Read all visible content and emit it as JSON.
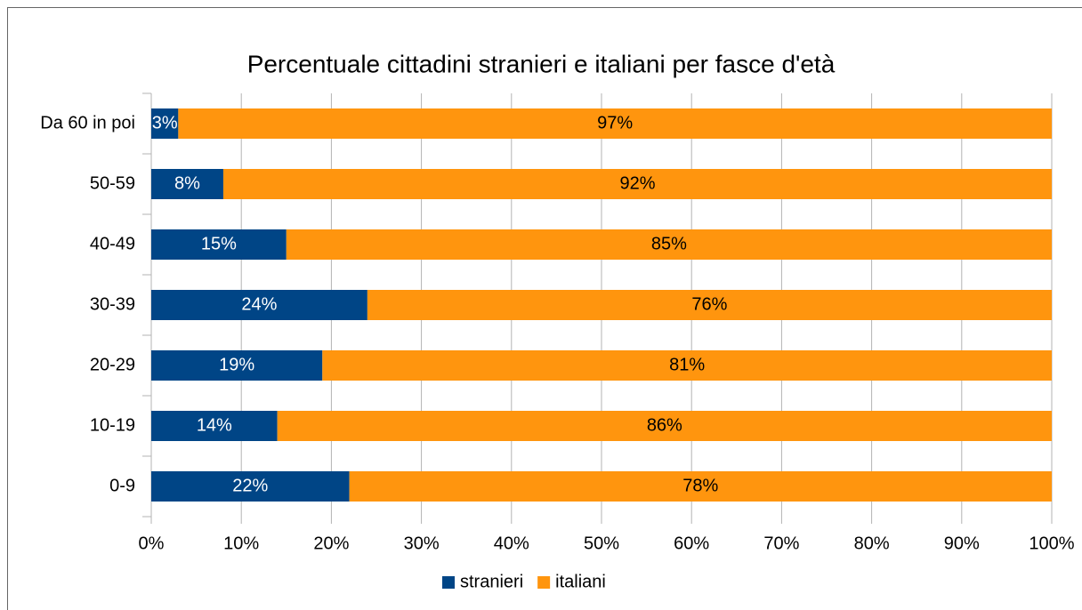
{
  "chart_data": {
    "type": "bar",
    "orientation": "horizontal",
    "stacked": true,
    "title": "Percentuale cittadini stranieri e italiani per fasce d'età",
    "categories": [
      "0-9",
      "10-19",
      "20-29",
      "30-39",
      "40-49",
      "50-59",
      "Da 60 in poi"
    ],
    "series": [
      {
        "name": "stranieri",
        "color": "#004586",
        "values": [
          22,
          14,
          19,
          24,
          15,
          8,
          3
        ],
        "value_labels": [
          "22%",
          "14%",
          "19%",
          "24%",
          "15%",
          "8%",
          "3%"
        ]
      },
      {
        "name": "italiani",
        "color": "#ff950e",
        "values": [
          78,
          86,
          81,
          76,
          85,
          92,
          97
        ],
        "value_labels": [
          "78%",
          "86%",
          "81%",
          "76%",
          "85%",
          "92%",
          "97%"
        ]
      }
    ],
    "xlim": [
      0,
      100
    ],
    "xticks": [
      {
        "value": 0,
        "label": "0%"
      },
      {
        "value": 10,
        "label": "10%"
      },
      {
        "value": 20,
        "label": "20%"
      },
      {
        "value": 30,
        "label": "30%"
      },
      {
        "value": 40,
        "label": "40%"
      },
      {
        "value": 50,
        "label": "50%"
      },
      {
        "value": 60,
        "label": "60%"
      },
      {
        "value": 70,
        "label": "70%"
      },
      {
        "value": 80,
        "label": "80%"
      },
      {
        "value": 90,
        "label": "90%"
      },
      {
        "value": 100,
        "label": "100%"
      }
    ],
    "grid": true,
    "legend": "bottom"
  }
}
